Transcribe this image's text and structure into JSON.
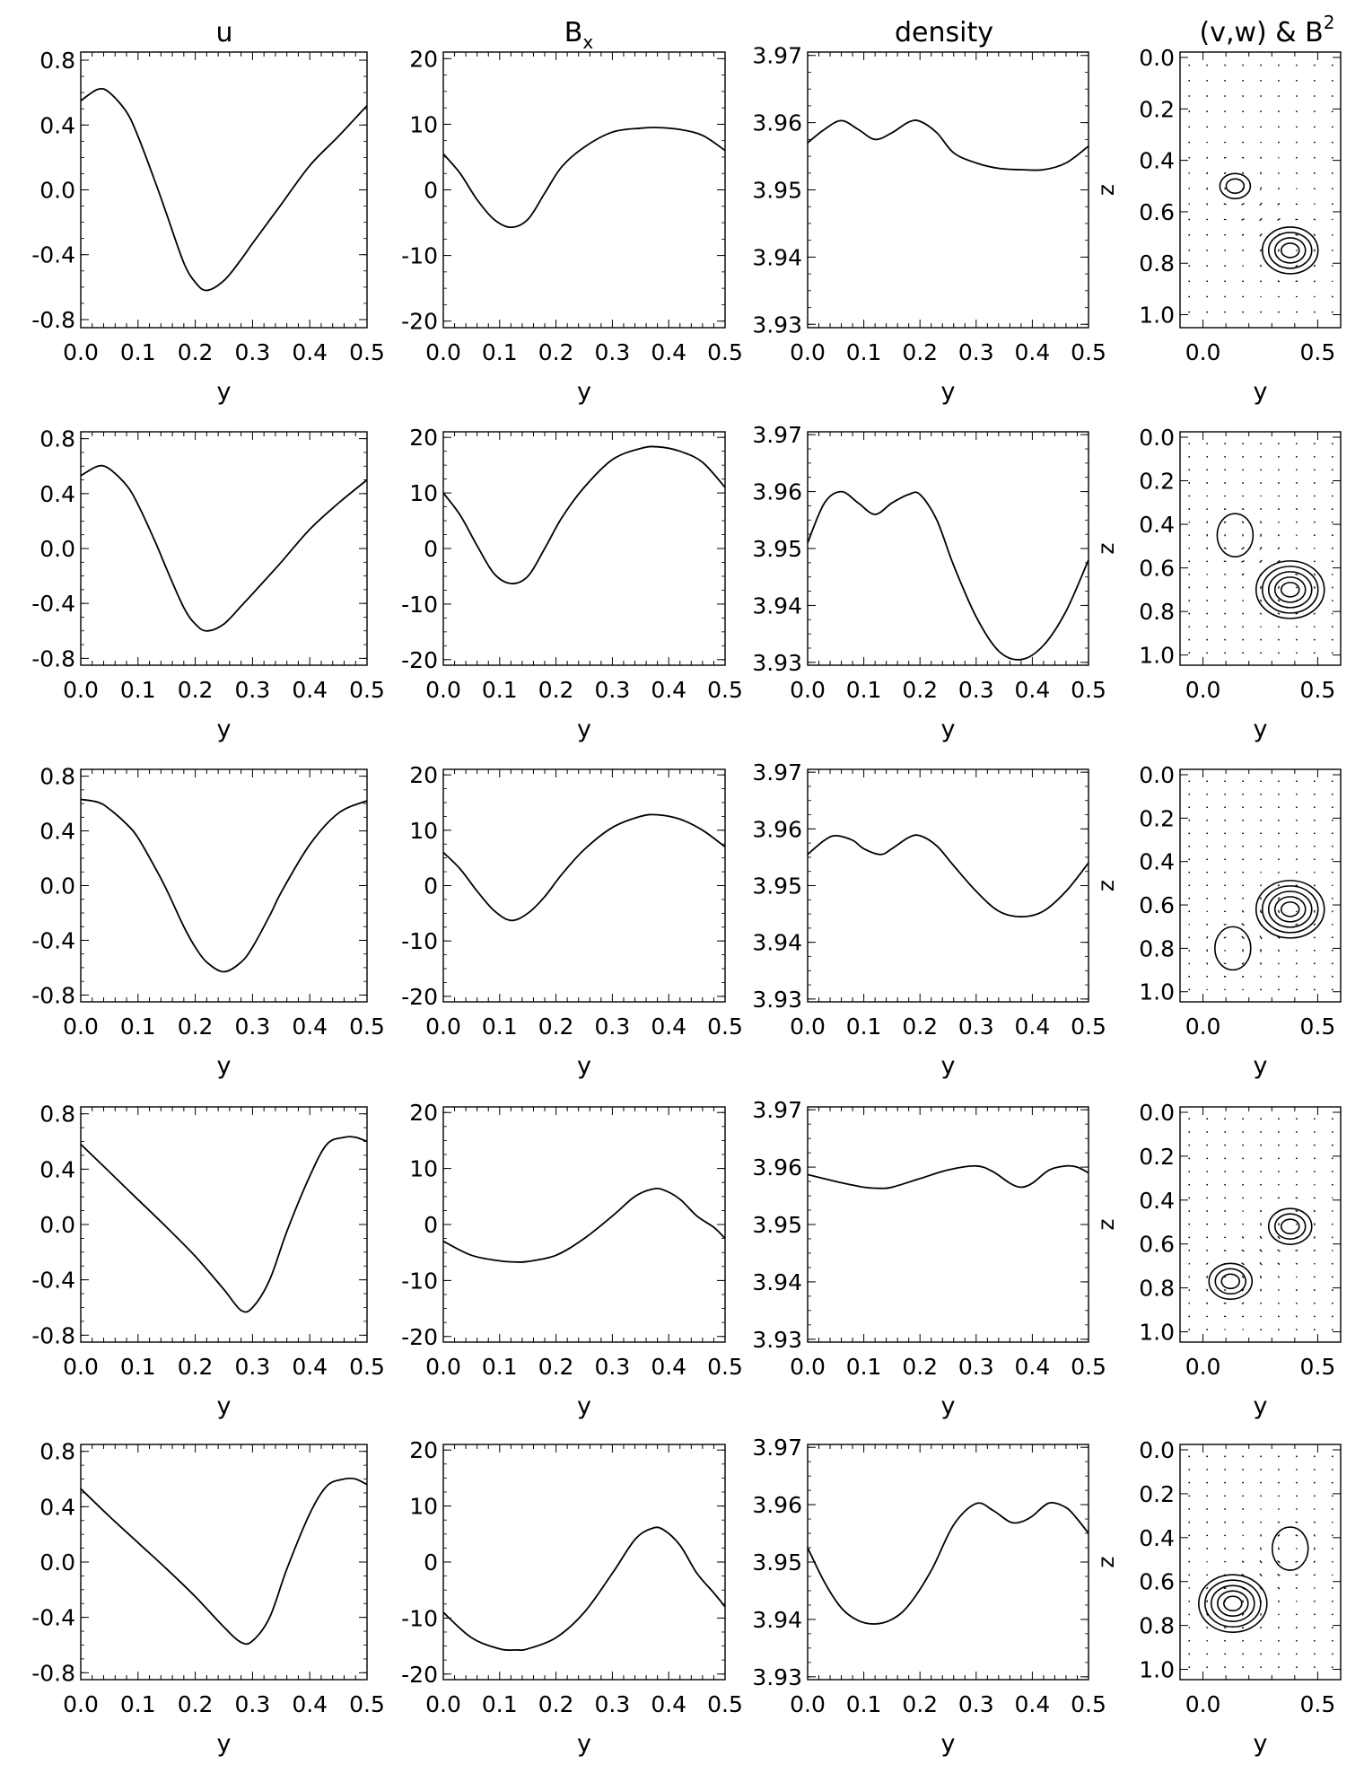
{
  "column_titles": [
    "u",
    "B",
    "density",
    "(v,w) & B"
  ],
  "column_title_sub": {
    "1": "x"
  },
  "column_title_sup": {
    "3": "2"
  },
  "chart_data": {
    "type": "line",
    "layout": "5 rows x 4 columns of panels",
    "columns": [
      {
        "quantity": "u",
        "xlabel": "y",
        "xlim": [
          0,
          0.5
        ],
        "ylim": [
          -0.85,
          0.85
        ],
        "xticks": [
          "0.0",
          "0.1",
          "0.2",
          "0.3",
          "0.4",
          "0.5"
        ],
        "yticks": [
          "0.8",
          "0.4",
          "0.0",
          "-0.4",
          "-0.8"
        ],
        "ytick_values": [
          0.8,
          0.4,
          0,
          -0.4,
          -0.8
        ]
      },
      {
        "quantity": "Bx",
        "xlabel": "y",
        "xlim": [
          0,
          0.5
        ],
        "ylim": [
          -21,
          21
        ],
        "xticks": [
          "0.0",
          "0.1",
          "0.2",
          "0.3",
          "0.4",
          "0.5"
        ],
        "yticks": [
          "20",
          "10",
          "0",
          "-10",
          "-20"
        ],
        "ytick_values": [
          20,
          10,
          0,
          -10,
          -20
        ]
      },
      {
        "quantity": "density",
        "xlabel": "y",
        "xlim": [
          0,
          0.5
        ],
        "ylim": [
          3.9295,
          3.9705
        ],
        "xticks": [
          "0.0",
          "0.1",
          "0.2",
          "0.3",
          "0.4",
          "0.5"
        ],
        "yticks": [
          "3.97",
          "3.96",
          "3.95",
          "3.94",
          "3.93"
        ],
        "ytick_values": [
          3.97,
          3.96,
          3.95,
          3.94,
          3.93
        ]
      },
      {
        "quantity": "(v,w) & B^2",
        "type": "vector+contour",
        "xlabel": "y",
        "ylabel": "z",
        "xlim": [
          -0.1,
          0.6
        ],
        "ylim": [
          0,
          1.05
        ],
        "xticks": [
          "0.0",
          "0.5"
        ],
        "xtick_values": [
          0,
          0.5
        ],
        "yticks": [
          "0.0",
          "0.2",
          "0.4",
          "0.6",
          "0.8",
          "1.0"
        ],
        "ytick_values": [
          0,
          0.2,
          0.4,
          0.6,
          0.8,
          1.0
        ]
      }
    ],
    "rows": [
      {
        "u": {
          "x": [
            0,
            0.03,
            0.05,
            0.08,
            0.1,
            0.13,
            0.15,
            0.18,
            0.2,
            0.22,
            0.25,
            0.28,
            0.3,
            0.35,
            0.4,
            0.45,
            0.5
          ],
          "y": [
            0.55,
            0.62,
            0.6,
            0.48,
            0.33,
            0.05,
            -0.15,
            -0.45,
            -0.57,
            -0.62,
            -0.56,
            -0.43,
            -0.33,
            -0.09,
            0.15,
            0.33,
            0.52
          ]
        },
        "Bx": {
          "x": [
            0,
            0.03,
            0.06,
            0.09,
            0.12,
            0.15,
            0.18,
            0.21,
            0.25,
            0.3,
            0.35,
            0.38,
            0.42,
            0.46,
            0.5
          ],
          "y": [
            5.5,
            2.5,
            -1.5,
            -4.5,
            -5.7,
            -4.5,
            -0.5,
            3.5,
            6.5,
            8.8,
            9.4,
            9.5,
            9.2,
            8.3,
            6
          ]
        },
        "density": {
          "x": [
            0,
            0.03,
            0.06,
            0.09,
            0.12,
            0.15,
            0.18,
            0.2,
            0.23,
            0.26,
            0.3,
            0.34,
            0.38,
            0.42,
            0.46,
            0.5
          ],
          "y": [
            3.957,
            3.959,
            3.9603,
            3.959,
            3.9575,
            3.9585,
            3.9601,
            3.9602,
            3.9585,
            3.9555,
            3.954,
            3.9532,
            3.953,
            3.953,
            3.954,
            3.9565
          ]
        },
        "vw": {
          "contours": [
            {
              "cy": 0.14,
              "cz": 0.5,
              "levels": 2
            },
            {
              "cy": 0.38,
              "cz": 0.75,
              "levels": 4
            }
          ]
        }
      },
      {
        "u": {
          "x": [
            0,
            0.03,
            0.05,
            0.08,
            0.1,
            0.13,
            0.15,
            0.18,
            0.2,
            0.22,
            0.25,
            0.28,
            0.3,
            0.35,
            0.4,
            0.45,
            0.5
          ],
          "y": [
            0.53,
            0.6,
            0.58,
            0.46,
            0.32,
            0.05,
            -0.15,
            -0.43,
            -0.55,
            -0.6,
            -0.55,
            -0.42,
            -0.33,
            -0.1,
            0.14,
            0.33,
            0.5
          ]
        },
        "Bx": {
          "x": [
            0,
            0.03,
            0.06,
            0.09,
            0.12,
            0.15,
            0.18,
            0.21,
            0.25,
            0.3,
            0.35,
            0.38,
            0.42,
            0.46,
            0.5
          ],
          "y": [
            10,
            6,
            0.5,
            -4.5,
            -6.3,
            -5,
            0,
            5.5,
            11,
            16,
            18,
            18.3,
            17.5,
            15.5,
            11
          ]
        },
        "density": {
          "x": [
            0,
            0.03,
            0.06,
            0.09,
            0.12,
            0.15,
            0.18,
            0.2,
            0.23,
            0.26,
            0.3,
            0.34,
            0.38,
            0.42,
            0.46,
            0.5
          ],
          "y": [
            3.951,
            3.958,
            3.96,
            3.958,
            3.956,
            3.958,
            3.9595,
            3.9595,
            3.955,
            3.947,
            3.938,
            3.932,
            3.9305,
            3.933,
            3.939,
            3.948
          ]
        },
        "vw": {
          "contours": [
            {
              "cy": 0.14,
              "cz": 0.45,
              "levels": 1
            },
            {
              "cy": 0.38,
              "cz": 0.7,
              "levels": 5
            }
          ]
        }
      },
      {
        "u": {
          "x": [
            0,
            0.03,
            0.05,
            0.08,
            0.1,
            0.13,
            0.15,
            0.18,
            0.2,
            0.22,
            0.25,
            0.28,
            0.3,
            0.33,
            0.35,
            0.4,
            0.45,
            0.5
          ],
          "y": [
            0.63,
            0.61,
            0.56,
            0.45,
            0.35,
            0.13,
            -0.03,
            -0.3,
            -0.45,
            -0.56,
            -0.63,
            -0.56,
            -0.45,
            -0.22,
            -0.05,
            0.3,
            0.53,
            0.62
          ]
        },
        "Bx": {
          "x": [
            0,
            0.03,
            0.06,
            0.09,
            0.12,
            0.15,
            0.18,
            0.21,
            0.25,
            0.3,
            0.35,
            0.38,
            0.42,
            0.46,
            0.5
          ],
          "y": [
            6,
            3,
            -1,
            -4.5,
            -6.3,
            -5,
            -2,
            2,
            6.5,
            10.5,
            12.5,
            12.8,
            12,
            10,
            7
          ]
        },
        "density": {
          "x": [
            0,
            0.03,
            0.05,
            0.08,
            0.1,
            0.13,
            0.15,
            0.18,
            0.2,
            0.23,
            0.26,
            0.3,
            0.34,
            0.38,
            0.42,
            0.46,
            0.5
          ],
          "y": [
            3.9555,
            3.958,
            3.9588,
            3.958,
            3.9565,
            3.9555,
            3.9565,
            3.9585,
            3.9588,
            3.957,
            3.9535,
            3.949,
            3.9455,
            3.9445,
            3.9455,
            3.949,
            3.954
          ]
        },
        "vw": {
          "contours": [
            {
              "cy": 0.38,
              "cz": 0.62,
              "levels": 5
            },
            {
              "cy": 0.13,
              "cz": 0.8,
              "levels": 1
            }
          ]
        }
      },
      {
        "u": {
          "x": [
            0,
            0.05,
            0.1,
            0.15,
            0.2,
            0.25,
            0.28,
            0.3,
            0.33,
            0.36,
            0.4,
            0.43,
            0.46,
            0.48,
            0.5
          ],
          "y": [
            0.58,
            0.38,
            0.18,
            -0.02,
            -0.23,
            -0.47,
            -0.62,
            -0.6,
            -0.4,
            -0.05,
            0.35,
            0.58,
            0.63,
            0.63,
            0.6
          ]
        },
        "Bx": {
          "x": [
            0,
            0.05,
            0.1,
            0.13,
            0.15,
            0.2,
            0.25,
            0.3,
            0.34,
            0.37,
            0.39,
            0.42,
            0.45,
            0.48,
            0.5
          ],
          "y": [
            -3,
            -5.5,
            -6.5,
            -6.7,
            -6.6,
            -5.5,
            -2.5,
            1.5,
            5,
            6.3,
            6.2,
            4.5,
            1.5,
            -0.5,
            -2.5
          ]
        },
        "density": {
          "x": [
            0,
            0.05,
            0.1,
            0.13,
            0.15,
            0.2,
            0.25,
            0.3,
            0.33,
            0.36,
            0.38,
            0.4,
            0.43,
            0.46,
            0.48,
            0.5
          ],
          "y": [
            3.9587,
            3.9575,
            3.9565,
            3.9563,
            3.9565,
            3.958,
            3.9595,
            3.9602,
            3.9592,
            3.9572,
            3.9565,
            3.9572,
            3.9595,
            3.9602,
            3.96,
            3.959
          ]
        },
        "vw": {
          "contours": [
            {
              "cy": 0.38,
              "cz": 0.52,
              "levels": 3
            },
            {
              "cy": 0.12,
              "cz": 0.77,
              "levels": 3
            }
          ]
        }
      },
      {
        "u": {
          "x": [
            0,
            0.05,
            0.1,
            0.15,
            0.2,
            0.25,
            0.28,
            0.3,
            0.33,
            0.36,
            0.4,
            0.43,
            0.46,
            0.48,
            0.5
          ],
          "y": [
            0.53,
            0.33,
            0.14,
            -0.05,
            -0.25,
            -0.47,
            -0.58,
            -0.57,
            -0.4,
            -0.05,
            0.35,
            0.55,
            0.6,
            0.6,
            0.56
          ]
        },
        "Bx": {
          "x": [
            0,
            0.05,
            0.1,
            0.13,
            0.15,
            0.2,
            0.25,
            0.3,
            0.34,
            0.37,
            0.39,
            0.42,
            0.45,
            0.48,
            0.5
          ],
          "y": [
            -9,
            -13.5,
            -15.5,
            -15.7,
            -15.5,
            -13.5,
            -9,
            -2,
            4,
            6,
            5.8,
            3,
            -2,
            -5.5,
            -8
          ]
        },
        "density": {
          "x": [
            0,
            0.03,
            0.06,
            0.09,
            0.12,
            0.15,
            0.18,
            0.22,
            0.26,
            0.3,
            0.33,
            0.36,
            0.38,
            0.4,
            0.43,
            0.46,
            0.48,
            0.5
          ],
          "y": [
            3.9525,
            3.9465,
            3.942,
            3.9398,
            3.9392,
            3.94,
            3.9425,
            3.9485,
            3.9565,
            3.9602,
            3.959,
            3.957,
            3.957,
            3.958,
            3.9603,
            3.9595,
            3.9575,
            3.955
          ]
        },
        "vw": {
          "contours": [
            {
              "cy": 0.38,
              "cz": 0.45,
              "levels": 1
            },
            {
              "cy": 0.13,
              "cz": 0.7,
              "levels": 5
            }
          ]
        }
      }
    ]
  }
}
